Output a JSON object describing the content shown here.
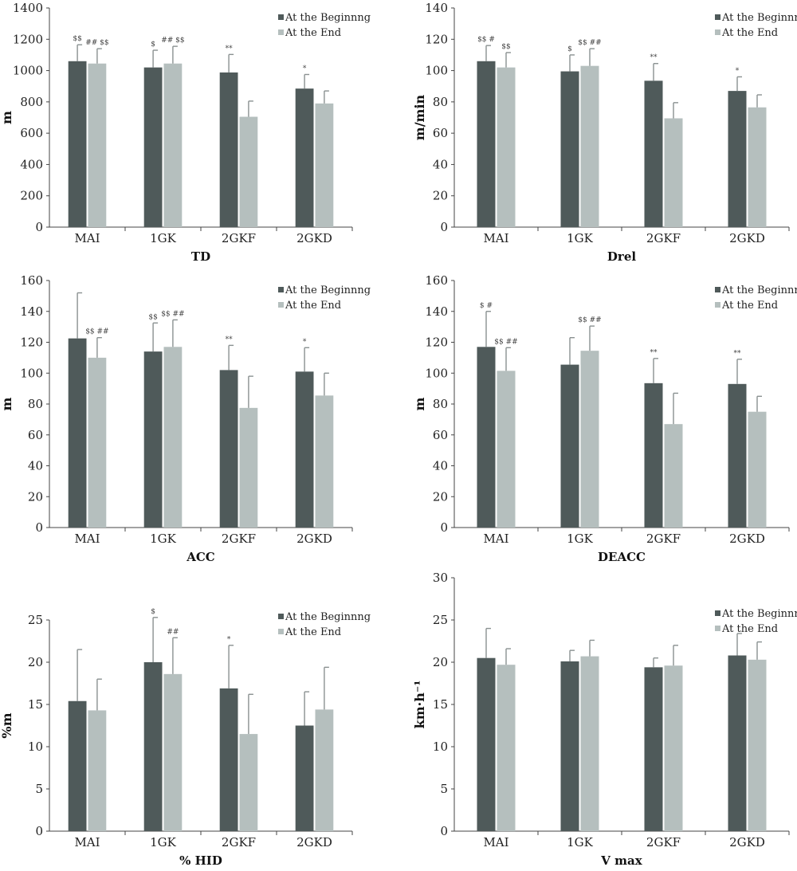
{
  "colors": {
    "beginning": "#4f5a5a",
    "end": "#b5bfbe",
    "error": "#8a9191",
    "axis": "#444444"
  },
  "chart_data": [
    {
      "type": "bar",
      "categories": [
        "MAI",
        "1GK",
        "2GKF",
        "2GKD"
      ],
      "xlabel": "TD",
      "ylabel": "m",
      "ylim": [
        0,
        1400
      ],
      "yticks": [
        0,
        200,
        400,
        600,
        800,
        1000,
        1200,
        1400
      ],
      "legend": "top-right",
      "series": [
        {
          "name": "At the Beginnng",
          "values": [
            1060,
            1020,
            988,
            885
          ],
          "errors": [
            105,
            110,
            115,
            90
          ],
          "annotations": [
            "$$",
            "$",
            "**",
            "*"
          ]
        },
        {
          "name": "At the End",
          "values": [
            1045,
            1045,
            705,
            790
          ],
          "errors": [
            95,
            110,
            100,
            80
          ],
          "annotations": [
            "## $$",
            "## $$",
            "",
            ""
          ]
        }
      ]
    },
    {
      "type": "bar",
      "categories": [
        "MAI",
        "1GK",
        "2GKF",
        "2GKD"
      ],
      "xlabel": "Drel",
      "ylabel": "m/min",
      "ylim": [
        0,
        140
      ],
      "yticks": [
        0,
        20,
        40,
        60,
        80,
        100,
        120,
        140
      ],
      "legend": "top-right",
      "series": [
        {
          "name": "At the Beginnng",
          "values": [
            106,
            99.5,
            93.5,
            87
          ],
          "errors": [
            10,
            10.5,
            11,
            9
          ],
          "annotations": [
            "$$ #",
            "$",
            "**",
            "*"
          ]
        },
        {
          "name": "At the End",
          "values": [
            102,
            103,
            69.5,
            76.5
          ],
          "errors": [
            9.5,
            11,
            10,
            8
          ],
          "annotations": [
            "$$",
            "$$ ##",
            "",
            ""
          ]
        }
      ]
    },
    {
      "type": "bar",
      "categories": [
        "MAI",
        "1GK",
        "2GKF",
        "2GKD"
      ],
      "xlabel": "ACC",
      "ylabel": "m",
      "ylim": [
        0,
        160
      ],
      "yticks": [
        0,
        20,
        40,
        60,
        80,
        100,
        120,
        140,
        160
      ],
      "legend": "top-right",
      "series": [
        {
          "name": "At the Beginnng",
          "values": [
            122.5,
            114,
            102,
            101
          ],
          "errors": [
            29.5,
            18.5,
            16,
            15.5
          ],
          "annotations": [
            "",
            "$$",
            "**",
            "*"
          ]
        },
        {
          "name": "At the End",
          "values": [
            110,
            117,
            77.5,
            85.5
          ],
          "errors": [
            13,
            17.5,
            20.5,
            14.5
          ],
          "annotations": [
            "$$ ##",
            "$$ ##",
            "",
            ""
          ]
        }
      ]
    },
    {
      "type": "bar",
      "categories": [
        "MAI",
        "1GK",
        "2GKF",
        "2GKD"
      ],
      "xlabel": "DEACC",
      "ylabel": "m",
      "ylim": [
        0,
        160
      ],
      "yticks": [
        0,
        20,
        40,
        60,
        80,
        100,
        120,
        140,
        160
      ],
      "legend": "top-right",
      "series": [
        {
          "name": "At the Beginnng",
          "values": [
            117,
            105.5,
            93.5,
            93
          ],
          "errors": [
            23,
            17.5,
            16,
            16
          ],
          "annotations": [
            "$ #",
            "",
            "**",
            "**"
          ]
        },
        {
          "name": "At the End",
          "values": [
            101.5,
            114.5,
            67,
            75
          ],
          "errors": [
            15,
            16,
            20,
            10
          ],
          "annotations": [
            "$$ ##",
            "$$ ##",
            "",
            ""
          ]
        }
      ]
    },
    {
      "type": "bar",
      "categories": [
        "MAI",
        "1GK",
        "2GKF",
        "2GKD"
      ],
      "xlabel": "% HID",
      "ylabel": "%m",
      "ylim": [
        0,
        25
      ],
      "yticks": [
        0,
        5,
        10,
        15,
        20,
        25
      ],
      "legend": "top-right",
      "series": [
        {
          "name": "At the Beginnng",
          "values": [
            15.4,
            20,
            16.9,
            12.5
          ],
          "errors": [
            6.1,
            5.3,
            5.1,
            4
          ],
          "annotations": [
            "",
            "$",
            "*",
            ""
          ]
        },
        {
          "name": "At the End",
          "values": [
            14.3,
            18.6,
            11.5,
            14.4
          ],
          "errors": [
            3.7,
            4.3,
            4.7,
            5
          ],
          "annotations": [
            "",
            "##",
            "",
            ""
          ]
        }
      ]
    },
    {
      "type": "bar",
      "categories": [
        "MAI",
        "1GK",
        "2GKF",
        "2GKD"
      ],
      "xlabel": "V max",
      "ylabel": "km·h⁻¹",
      "ylim": [
        0,
        30
      ],
      "yticks": [
        0,
        5,
        10,
        15,
        20,
        25,
        30
      ],
      "legend": "top-right",
      "series": [
        {
          "name": "At the Beginnng",
          "values": [
            20.5,
            20.1,
            19.4,
            20.8
          ],
          "errors": [
            3.5,
            1.3,
            1.1,
            2.6
          ],
          "annotations": [
            "",
            "",
            "",
            ""
          ]
        },
        {
          "name": "At the End",
          "values": [
            19.7,
            20.7,
            19.6,
            20.3
          ],
          "errors": [
            1.9,
            1.9,
            2.4,
            2.1
          ],
          "annotations": [
            "",
            "",
            "",
            ""
          ]
        }
      ]
    }
  ]
}
